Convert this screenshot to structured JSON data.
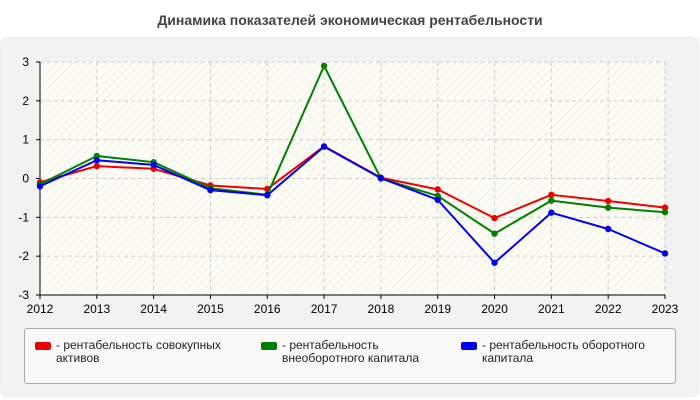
{
  "chart_data": {
    "type": "line",
    "title": "Динамика показателей экономическая рентабельности",
    "x": [
      "2012",
      "2013",
      "2014",
      "2015",
      "2016",
      "2017",
      "2018",
      "2019",
      "2020",
      "2021",
      "2022",
      "2023"
    ],
    "ylim": [
      -3,
      3
    ],
    "y_ticks": [
      "3",
      "2",
      "1",
      "0",
      "-1",
      "-2",
      "-3"
    ],
    "grid": true,
    "legend_position": "bottom",
    "series": [
      {
        "name": "- рентабельность совокупных активов",
        "color": "#ee0000",
        "values": [
          -0.1,
          0.32,
          0.25,
          -0.18,
          -0.27,
          0.83,
          0.02,
          -0.28,
          -1.02,
          -0.42,
          -0.58,
          -0.75
        ]
      },
      {
        "name": "- рентабельность внеоборотного капитала",
        "color": "#008000",
        "values": [
          -0.15,
          0.58,
          0.42,
          -0.25,
          -0.42,
          2.9,
          0.0,
          -0.45,
          -1.42,
          -0.57,
          -0.75,
          -0.87
        ]
      },
      {
        "name": "- рентабельность оборотного капитала",
        "color": "#0000ee",
        "values": [
          -0.2,
          0.47,
          0.35,
          -0.3,
          -0.43,
          0.82,
          0.01,
          -0.55,
          -2.17,
          -0.88,
          -1.3,
          -1.93
        ]
      }
    ]
  }
}
